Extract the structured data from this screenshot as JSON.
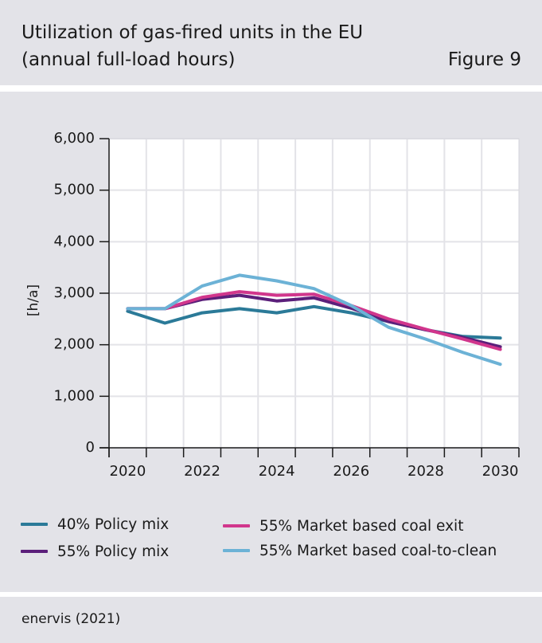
{
  "header": {
    "title_line1": "Utilization of gas-fired units in the EU",
    "title_line2": "(annual full-load hours)",
    "figure_label": "Figure 9"
  },
  "footer": {
    "source": "enervis (2021)"
  },
  "chart_data": {
    "type": "line",
    "ylabel": "[h/a]",
    "xlabel": "",
    "x": [
      2020,
      2021,
      2022,
      2023,
      2024,
      2025,
      2026,
      2027,
      2028,
      2029,
      2030
    ],
    "xlim": [
      2019.5,
      2030.5
    ],
    "xticks": [
      2020,
      2022,
      2024,
      2026,
      2028,
      2030
    ],
    "xtick_labels": [
      "2020",
      "2022",
      "2024",
      "2026",
      "2028",
      "2030"
    ],
    "ylim": [
      0,
      6000
    ],
    "yticks": [
      0,
      1000,
      2000,
      3000,
      4000,
      5000,
      6000
    ],
    "ytick_labels": [
      "0",
      "1,000",
      "2,000",
      "3,000",
      "4,000",
      "5,000",
      "6,000"
    ],
    "grid": true,
    "legend_position": "bottom",
    "series": [
      {
        "name": "40% Policy mix",
        "color": "#2b7a98",
        "values": [
          2650,
          2420,
          2620,
          2700,
          2620,
          2740,
          2620,
          2450,
          2290,
          2160,
          2130
        ]
      },
      {
        "name": "55% Policy mix",
        "color": "#5b1f7a",
        "values": [
          2700,
          2700,
          2880,
          2960,
          2850,
          2910,
          2710,
          2450,
          2290,
          2140,
          1960
        ]
      },
      {
        "name": "55% Market based coal exit",
        "color": "#d1368c",
        "values": [
          2700,
          2700,
          2920,
          3030,
          2960,
          2980,
          2760,
          2500,
          2300,
          2110,
          1910
        ]
      },
      {
        "name": "55% Market based coal-to-clean",
        "color": "#6cb2d6",
        "values": [
          2700,
          2700,
          3140,
          3350,
          3240,
          3090,
          2760,
          2340,
          2110,
          1850,
          1620
        ]
      }
    ]
  }
}
